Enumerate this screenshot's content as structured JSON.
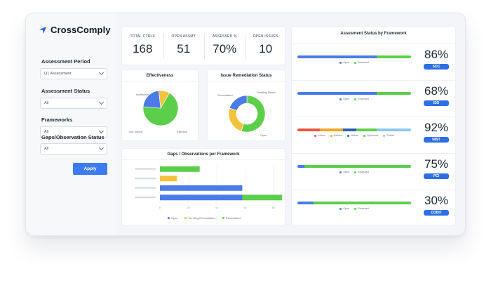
{
  "app": {
    "name": "CrossComply"
  },
  "colors": {
    "accent": "#3d7cf0",
    "blue": "#4a7be8",
    "yellow": "#f5c33b",
    "green": "#5ccf4a",
    "red": "#e8553d",
    "orange": "#f5a623",
    "navy": "#2f5fb8",
    "light_blue": "#8cc8f0"
  },
  "filters": {
    "assessment_period": {
      "label": "Assessment Period",
      "value": "Q1 Assessment"
    },
    "assessment_status": {
      "label": "Assessment Status",
      "value": "All"
    },
    "frameworks": {
      "label": "Frameworks",
      "value": "All"
    },
    "gaps_status": {
      "label": "Gaps/Observation Status",
      "value": "All"
    },
    "apply_label": "Apply"
  },
  "kpis": [
    {
      "label": "TOTAL CTRLS",
      "value": "168"
    },
    {
      "label": "OPEN ASSMT",
      "value": "51"
    },
    {
      "label": "ASSESSED %",
      "value": "70%"
    },
    {
      "label": "OPEN ISSUES",
      "value": "10"
    }
  ],
  "effectiveness": {
    "title": "Effectiveness",
    "labels": {
      "ineffective": "Ineffective",
      "not_tested": "Not Tested",
      "effective": "Effective"
    },
    "chart_data": {
      "type": "pie",
      "labels": [
        "Effective",
        "Not Tested",
        "Ineffective"
      ],
      "values": [
        68,
        22,
        10
      ],
      "colors": [
        "#5ccf4a",
        "#4a7be8",
        "#f5c33b"
      ]
    }
  },
  "remediation": {
    "title": "Issue Remediation Status",
    "labels": {
      "remediated": "Remediated",
      "pending": "Pending Reme...",
      "open": "Open"
    },
    "chart_data": {
      "type": "pie",
      "labels": [
        "Remediated",
        "Pending Remediation",
        "Open"
      ],
      "values": [
        55,
        25,
        20
      ],
      "colors": [
        "#5ccf4a",
        "#f5c33b",
        "#4a7be8"
      ]
    }
  },
  "gaps": {
    "title": "Gaps / Observations per Framework",
    "legend": [
      "Open",
      "Pending Remediation",
      "Remediated"
    ],
    "chart_data": {
      "type": "bar",
      "categories": [
        "",
        "",
        "",
        ""
      ],
      "series": [
        {
          "name": "Open",
          "values": [
            0,
            0,
            58,
            58
          ]
        },
        {
          "name": "Pending Remediation",
          "values": [
            0,
            12,
            0,
            0
          ]
        },
        {
          "name": "Remediated",
          "values": [
            28,
            0,
            0,
            28
          ]
        }
      ],
      "xlim": [
        0,
        80
      ],
      "xticks": [
        "0",
        "20",
        "40",
        "60",
        "80"
      ]
    }
  },
  "framework_status": {
    "title": "Assesment Status by Framework",
    "rows": [
      {
        "name": "SOC",
        "percent": "86%",
        "legend": [
          "Open",
          "Reviewed"
        ],
        "bar": [
          {
            "value": 0.7,
            "color": "#4a7be8"
          },
          {
            "value": 0.3,
            "color": "#5ccf4a"
          }
        ]
      },
      {
        "name": "ISO",
        "percent": "68%",
        "legend": [
          "Open",
          "Reviewed"
        ],
        "bar": [
          {
            "value": 0.7,
            "color": "#4a7be8"
          },
          {
            "value": 0.3,
            "color": "#5ccf4a"
          }
        ]
      },
      {
        "name": "NIST",
        "percent": "92%",
        "legend": [
          "Adhoc",
          "Defined",
          "Mature",
          "Optimized",
          "Partial"
        ],
        "bar": [
          {
            "value": 0.2,
            "color": "#e8553d"
          },
          {
            "value": 0.2,
            "color": "#f5a623"
          },
          {
            "value": 0.12,
            "color": "#2f5fb8"
          },
          {
            "value": 0.18,
            "color": "#5ccf4a"
          },
          {
            "value": 0.3,
            "color": "#8cc8f0"
          }
        ]
      },
      {
        "name": "PCI",
        "percent": "75%",
        "legend": [
          "Open",
          "Reviewed"
        ],
        "bar": [
          {
            "value": 0.06,
            "color": "#4a7be8"
          },
          {
            "value": 0.94,
            "color": "#5ccf4a"
          }
        ]
      },
      {
        "name": "COBIT",
        "percent": "30%",
        "legend": [
          "Open",
          "Reviewed"
        ],
        "bar": [
          {
            "value": 0.14,
            "color": "#4a7be8"
          },
          {
            "value": 0.86,
            "color": "#5ccf4a"
          }
        ]
      }
    ]
  }
}
